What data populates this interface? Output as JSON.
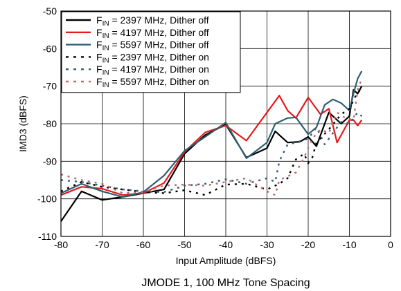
{
  "chart_data": {
    "type": "line",
    "title": "",
    "caption": "JMODE 1, 100 MHz Tone Spacing",
    "xlabel": "Input Amplitude (dBFS)",
    "ylabel": "IMD3 (dBFS)",
    "xlim": [
      -80,
      0
    ],
    "ylim": [
      -110,
      -50
    ],
    "xticks": [
      -80,
      -70,
      -60,
      -50,
      -40,
      -30,
      -20,
      -10,
      0
    ],
    "yticks": [
      -110,
      -100,
      -90,
      -80,
      -70,
      -60,
      -50
    ],
    "grid": true,
    "legend_position": "top-left",
    "series": [
      {
        "name_main": "F",
        "name_sub": "IN",
        "name_rest": " = 2397 MHz, Dither off",
        "color": "#000000",
        "dash": "solid",
        "x": [
          -80,
          -75,
          -70,
          -65,
          -60,
          -55,
          -50,
          -45,
          -40,
          -35,
          -30,
          -28,
          -25,
          -22,
          -20,
          -18,
          -15,
          -12,
          -10,
          -9,
          -8,
          -7
        ],
        "y": [
          -106,
          -98,
          -100.3,
          -99.5,
          -98.5,
          -97.5,
          -88,
          -83,
          -80.2,
          -89,
          -86.5,
          -82,
          -85,
          -84.8,
          -83.5,
          -86,
          -77,
          -80,
          -78,
          -71,
          -72,
          -70
        ]
      },
      {
        "name_main": "F",
        "name_sub": "IN",
        "name_rest": " = 4197 MHz, Dither off",
        "color": "#e41a1c",
        "dash": "solid",
        "x": [
          -80,
          -75,
          -70,
          -65,
          -60,
          -55,
          -50,
          -45,
          -40,
          -35,
          -30,
          -27,
          -25,
          -23,
          -20,
          -17,
          -15,
          -13,
          -10,
          -9,
          -8,
          -7
        ],
        "y": [
          -99,
          -96.8,
          -97.3,
          -99,
          -98.5,
          -95.8,
          -87.5,
          -82.3,
          -80.5,
          -84.5,
          -77,
          -72.5,
          -76.5,
          -78.5,
          -73,
          -77.5,
          -76,
          -85,
          -79,
          -79,
          -80.5,
          -79
        ]
      },
      {
        "name_main": "F",
        "name_sub": "IN",
        "name_rest": " = 5597 MHz, Dither off",
        "color": "#2e5f73",
        "dash": "solid",
        "x": [
          -80,
          -75,
          -70,
          -65,
          -60,
          -55,
          -50,
          -45,
          -40,
          -35,
          -30,
          -28,
          -25,
          -23,
          -20,
          -18,
          -16,
          -14,
          -12,
          -10,
          -9,
          -8,
          -7
        ],
        "y": [
          -98.5,
          -96,
          -98,
          -99.5,
          -98.2,
          -93.8,
          -87.2,
          -83.5,
          -79.7,
          -89.2,
          -85,
          -80,
          -78.5,
          -78.3,
          -82.8,
          -81,
          -75,
          -73.5,
          -74.5,
          -76.5,
          -72,
          -68,
          -66
        ]
      },
      {
        "name_main": "F",
        "name_sub": "IN",
        "name_rest": " = 2397 MHz, Dither on",
        "color": "#000000",
        "dash": "dotted",
        "x": [
          -80,
          -75,
          -70,
          -65,
          -60,
          -55,
          -50,
          -45,
          -40,
          -35,
          -30,
          -27,
          -25,
          -23,
          -21,
          -20,
          -19,
          -18,
          -15,
          -12,
          -10,
          -8,
          -7
        ],
        "y": [
          -98,
          -95.5,
          -96.8,
          -97.5,
          -98.2,
          -98.5,
          -97.7,
          -99,
          -96.2,
          -96,
          -97.5,
          -96,
          -94.5,
          -89.5,
          -88,
          -90.5,
          -89,
          -85,
          -81.5,
          -77.5,
          -76,
          -71.5,
          -71
        ]
      },
      {
        "name_main": "F",
        "name_sub": "IN",
        "name_rest": " = 4197 MHz, Dither on",
        "color": "#2e5f73",
        "dash": "dotted",
        "x": [
          -80,
          -75,
          -70,
          -65,
          -60,
          -55,
          -50,
          -45,
          -40,
          -35,
          -30,
          -28,
          -27,
          -25,
          -23,
          -20,
          -18,
          -16,
          -14,
          -12,
          -10,
          -8,
          -7
        ],
        "y": [
          -95,
          -95.5,
          -96.5,
          -97.5,
          -98,
          -98.2,
          -96.5,
          -96,
          -94.8,
          -96,
          -94.5,
          -95.5,
          -90,
          -85.5,
          -85,
          -84,
          -81,
          -85.5,
          -82.5,
          -79.5,
          -80,
          -77,
          -78
        ]
      },
      {
        "name_main": "F",
        "name_sub": "IN",
        "name_rest": " = 5597 MHz, Dither on",
        "color": "#c06a6a",
        "dash": "dotted",
        "x": [
          -80,
          -75,
          -70,
          -65,
          -60,
          -55,
          -50,
          -45,
          -40,
          -35,
          -30,
          -28,
          -27,
          -25,
          -23,
          -21,
          -19,
          -17,
          -15,
          -13,
          -11,
          -9,
          -8,
          -7
        ],
        "y": [
          -93.5,
          -95,
          -96,
          -98.5,
          -98.2,
          -96.5,
          -96.2,
          -96.5,
          -95.5,
          -94.5,
          -98,
          -99,
          -95,
          -94,
          -93,
          -89,
          -84,
          -81.5,
          -82.5,
          -77,
          -78.5,
          -79,
          -71,
          -68
        ]
      }
    ]
  }
}
